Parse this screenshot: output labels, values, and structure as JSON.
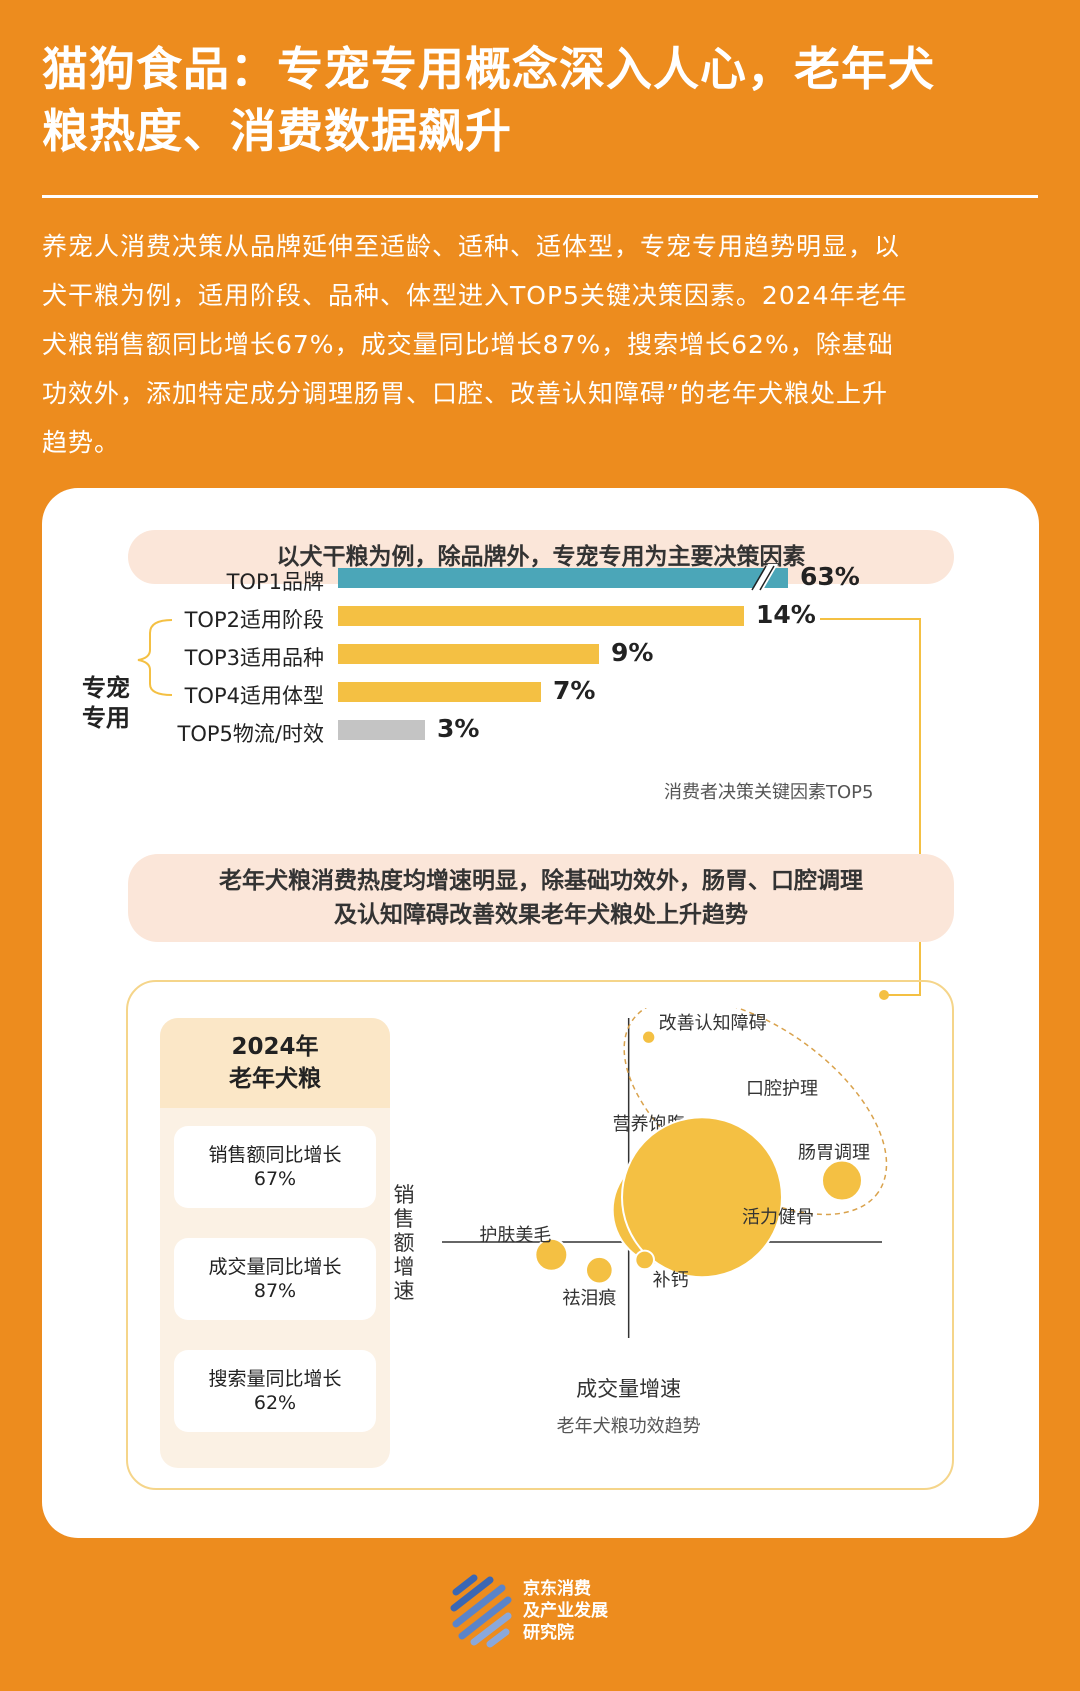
{
  "title_line1": "猫狗食品：专宠专用概念深入人心，老年犬",
  "title_line2": "粮热度、消费数据飙升",
  "intro_lines": [
    "养宠人消费决策从品牌延伸至适龄、适种、适体型，专宠专用趋势明显，以",
    "犬干粮为例，适用阶段、品种、体型进入TOP5关键决策因素。2024年老年",
    "犬粮销售额同比增长67%，成交量同比增长87%，搜索增长62%，除基础",
    "功效外，添加特定成分调理肠胃、口腔、改善认知障碍”的老年犬粮处上升",
    "趋势。"
  ],
  "pill1": "以犬干粮为例，除品牌外，专宠专用为主要决策因素",
  "pill2_line1": "老年犬粮消费热度均增速明显，除基础功效外，肠胃、口腔调理",
  "pill2_line2": "及认知障碍改善效果老年犬粮处上升趋势",
  "bracket_line1": "专宠",
  "bracket_line2": "专用",
  "chart1_note": "消费者决策关键因素TOP5",
  "stats": {
    "head_line1": "2024年",
    "head_line2": "老年犬粮",
    "items": [
      {
        "label": "销售额同比增长",
        "value": "67%"
      },
      {
        "label": "成交量同比增长",
        "value": "87%"
      },
      {
        "label": "搜索量同比增长",
        "value": "62%"
      }
    ]
  },
  "brand": {
    "line1": "京东消费",
    "line2": "及产业发展",
    "line3": "研究院"
  },
  "colors": {
    "teal": "#4BA6B8",
    "yellow": "#F4C043",
    "gray": "#C4C4C4",
    "orange": "#ED8C1E"
  },
  "chart_data": [
    {
      "type": "bar",
      "orientation": "horizontal",
      "categories": [
        "TOP1品牌",
        "TOP2适用阶段",
        "TOP3适用品种",
        "TOP4适用体型",
        "TOP5物流/时效"
      ],
      "values": [
        63,
        14,
        9,
        7,
        3
      ],
      "value_labels": [
        "63%",
        "14%",
        "9%",
        "7%",
        "3%"
      ],
      "bar_colors": [
        "#4BA6B8",
        "#F4C043",
        "#F4C043",
        "#F4C043",
        "#C4C4C4"
      ],
      "axis_break_on_first_bar": true,
      "title": "消费者决策关键因素TOP5"
    },
    {
      "type": "scatter",
      "title": "老年犬粮功效趋势",
      "xlabel": "成交量增速",
      "ylabel": "销售额增速",
      "points": [
        {
          "label": "改善认知障碍",
          "x": 0.15,
          "y": 1.6,
          "r": 0.05,
          "highlighted": true
        },
        {
          "label": "口腔护理",
          "x": 1.15,
          "y": 1.2,
          "r": 0.0,
          "highlighted": true
        },
        {
          "label": "肠胃调理",
          "x": 1.6,
          "y": 0.48,
          "r": 0.15,
          "highlighted": true
        },
        {
          "label": "营养饱腹",
          "x": 0.3,
          "y": 0.25,
          "r": 0.42,
          "highlighted": false
        },
        {
          "label": "活力健骨",
          "x": 0.55,
          "y": 0.35,
          "r": 0.6,
          "highlighted": false
        },
        {
          "label": "护肤美毛",
          "x": -0.58,
          "y": -0.1,
          "r": 0.12,
          "highlighted": false
        },
        {
          "label": "祛泪痕",
          "x": -0.22,
          "y": -0.22,
          "r": 0.1,
          "highlighted": false
        },
        {
          "label": "补钙",
          "x": 0.12,
          "y": -0.14,
          "r": 0.07,
          "highlighted": false
        }
      ],
      "xlim": [
        -1.4,
        1.9
      ],
      "ylim": [
        -0.75,
        1.75
      ]
    }
  ]
}
